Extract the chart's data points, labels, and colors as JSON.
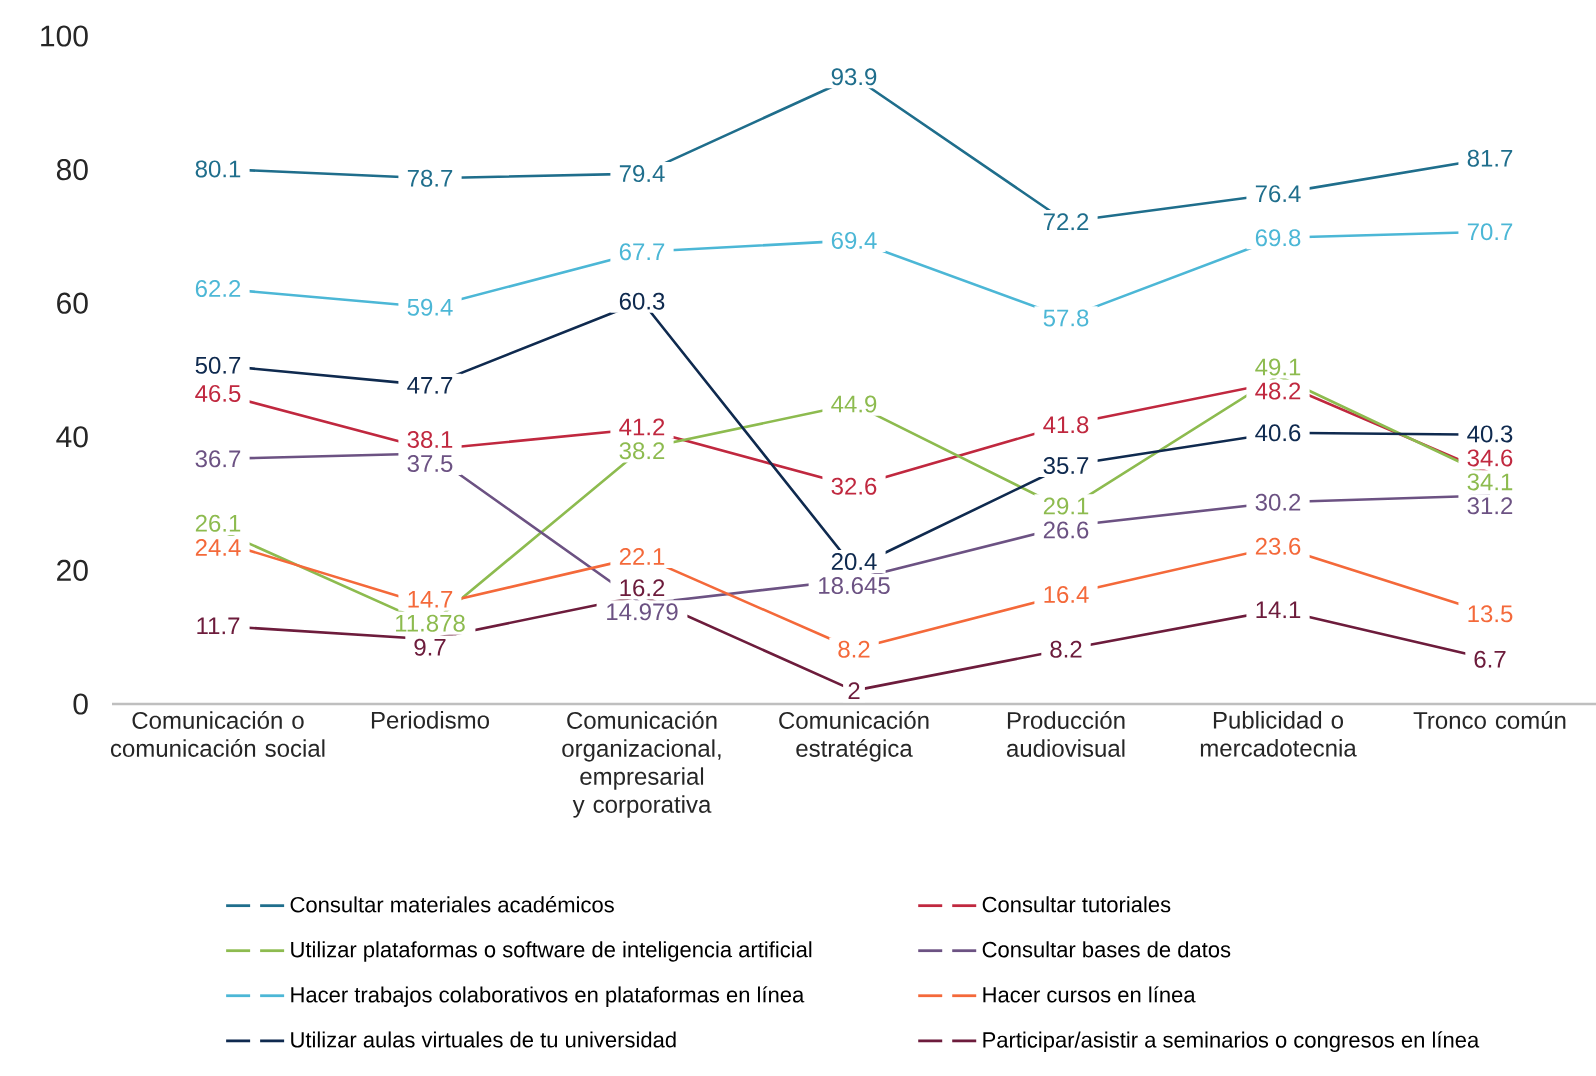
{
  "chart_data": {
    "type": "line",
    "categories": [
      "Comunicación o comunicación social",
      "Periodismo",
      "Comunicación organizacional, empresarial y corporativa",
      "Comunicación estratégica",
      "Producción audiovisual",
      "Publicidad o mercadotecnia",
      "Tronco común"
    ],
    "series": [
      {
        "name": "Consultar materiales académicos",
        "color": "#1f6e8c",
        "values": [
          80.1,
          78.7,
          79.4,
          93.9,
          72.2,
          76.4,
          81.7
        ]
      },
      {
        "name": "Consultar tutoriales",
        "color": "#c0283f",
        "values": [
          46.5,
          38.1,
          41.2,
          32.6,
          41.8,
          48.2,
          34.6
        ]
      },
      {
        "name": "Utilizar plataformas o software de inteligencia artificial",
        "color": "#8dbb4f",
        "values": [
          26.1,
          11.878,
          38.2,
          44.9,
          29.1,
          49.1,
          34.1
        ]
      },
      {
        "name": "Consultar bases de datos",
        "color": "#6c5283",
        "values": [
          36.7,
          37.5,
          14.979,
          18.645,
          26.6,
          30.2,
          31.2
        ]
      },
      {
        "name": "Hacer trabajos colaborativos en plataformas en línea",
        "color": "#4cb7d6",
        "values": [
          62.2,
          59.4,
          67.7,
          69.4,
          57.8,
          69.8,
          70.7
        ]
      },
      {
        "name": "Hacer cursos en línea",
        "color": "#f4693a",
        "values": [
          24.4,
          14.7,
          22.1,
          8.2,
          16.4,
          23.6,
          13.5
        ]
      },
      {
        "name": "Utilizar aulas virtuales de tu universidad",
        "color": "#0f2a4f",
        "values": [
          50.7,
          47.7,
          60.3,
          20.4,
          35.7,
          40.6,
          40.3
        ]
      },
      {
        "name": "Participar/asistir a seminarios o congresos en línea",
        "color": "#6d1c3c",
        "values": [
          11.7,
          9.7,
          16.2,
          2,
          8.2,
          14.1,
          6.7
        ]
      }
    ],
    "ylim": [
      0,
      100
    ],
    "yticks": [
      0,
      20,
      40,
      60,
      80,
      100
    ],
    "data_labels": true,
    "grid": false,
    "legend": "bottom",
    "marker": "none",
    "line_style": "solid"
  }
}
